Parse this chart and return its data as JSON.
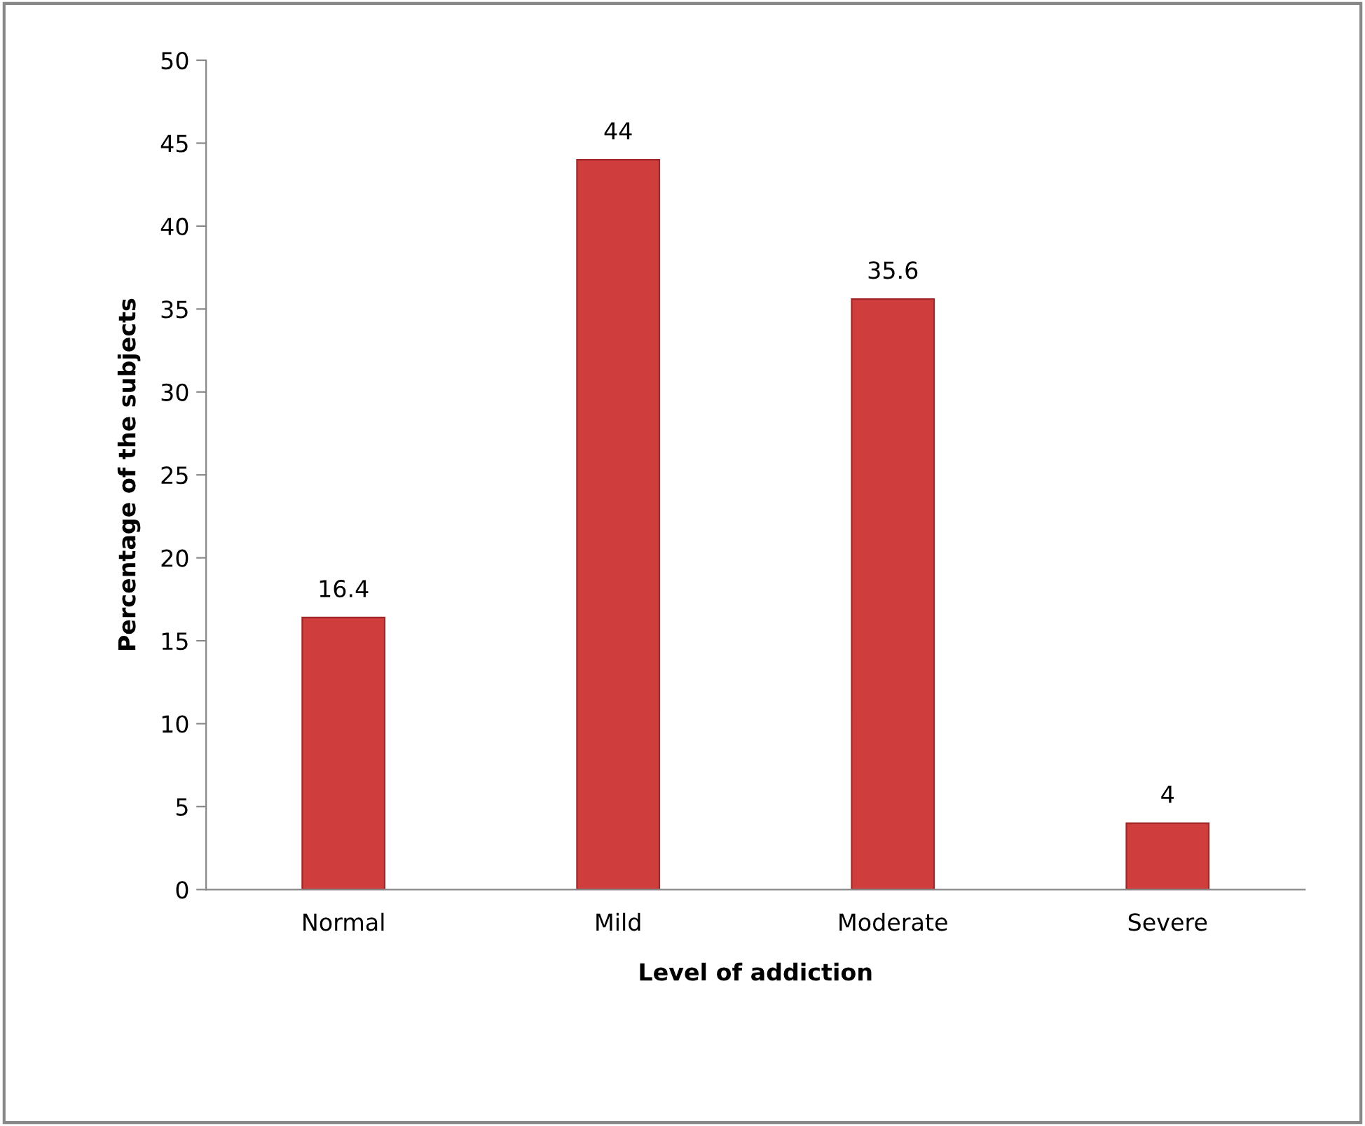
{
  "chart_data": {
    "type": "bar",
    "xlabel": "Level of addiction",
    "ylabel": "Percentage of the subjects",
    "categories": [
      "Normal",
      "Mild",
      "Moderate",
      "Severe"
    ],
    "values": [
      16.4,
      44,
      35.6,
      4
    ],
    "color": "#cf3d3d",
    "ylim": [
      0,
      50
    ],
    "yticks": [
      0,
      5,
      10,
      15,
      20,
      25,
      30,
      35,
      40,
      45,
      50
    ],
    "data_labels": true,
    "grid": false,
    "legend": false
  }
}
